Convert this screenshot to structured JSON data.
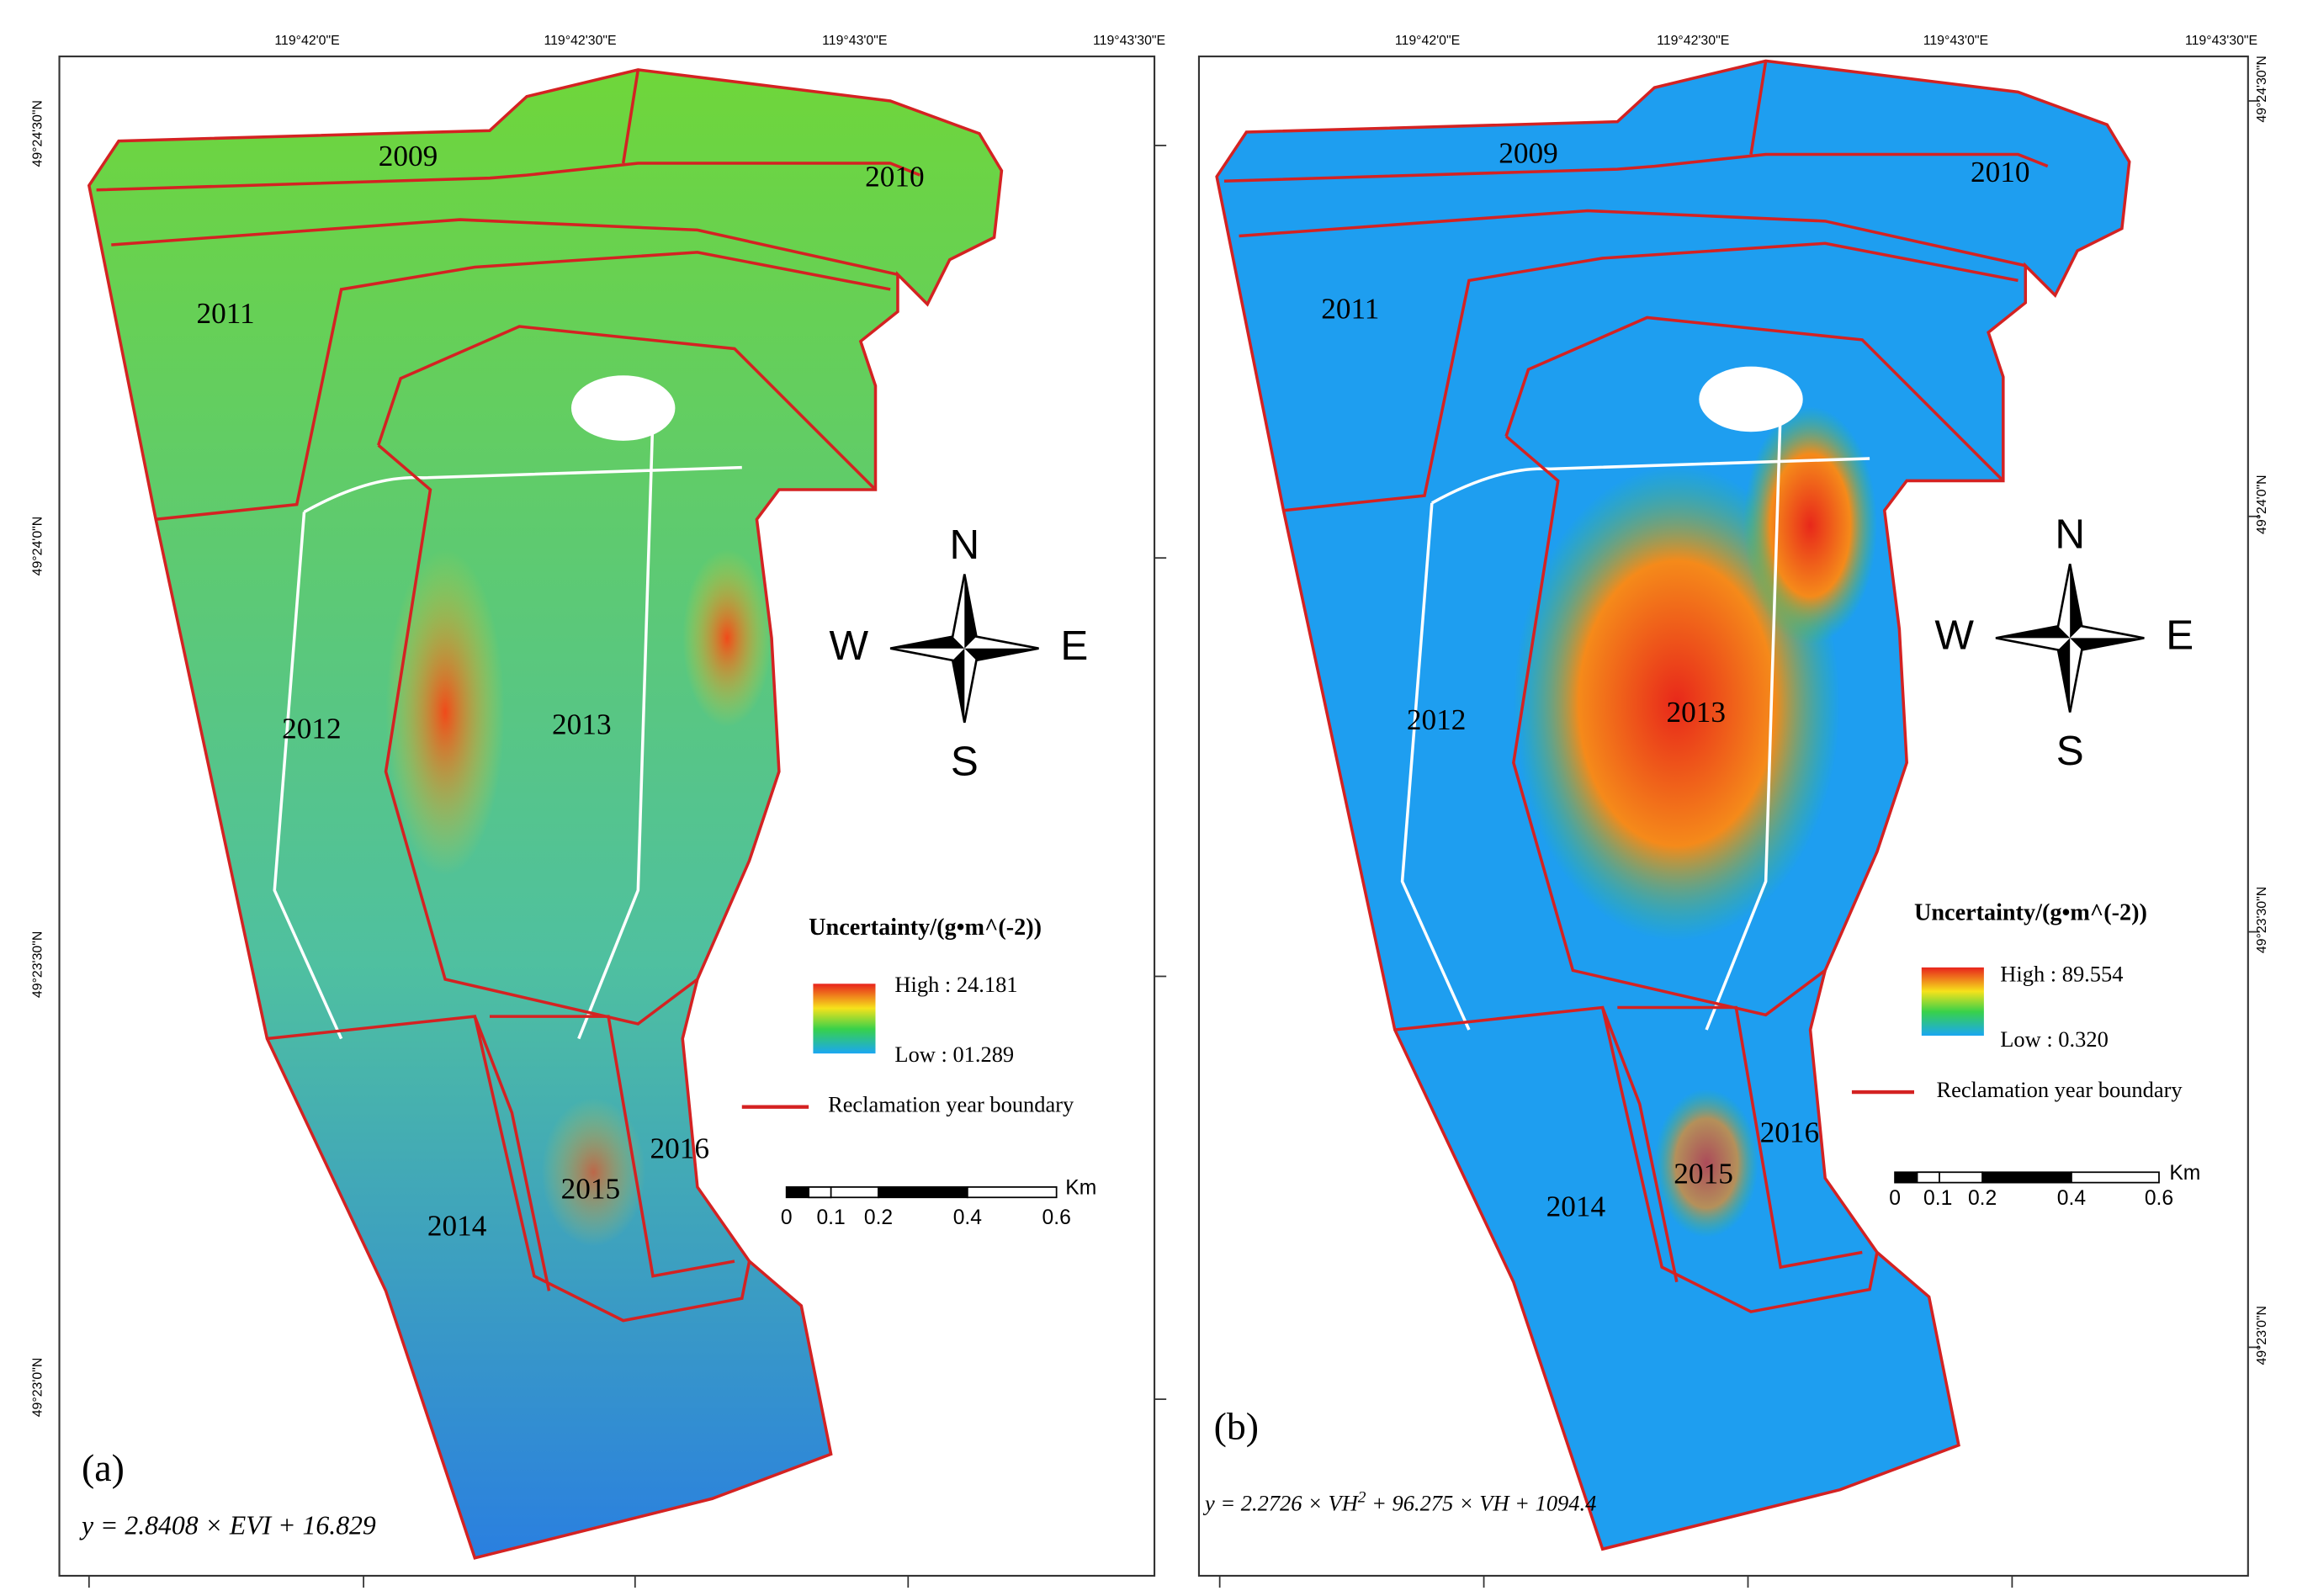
{
  "panels": [
    {
      "label": "(a)",
      "equation": [
        "y = 2.8408 × EVI + 16.829"
      ],
      "lon_labels": [
        "119°42'0\"E",
        "119°42'30\"E",
        "119°43'0\"E",
        "119°43'30\"E"
      ],
      "lat_labels": [
        "49°24'30\"N",
        "49°24'0\"N",
        "49°23'30\"N",
        "49°23'0\"N"
      ],
      "years": [
        "2009",
        "2010",
        "2011",
        "2012",
        "2013",
        "2014",
        "2015",
        "2016"
      ],
      "compass": [
        "N",
        "S",
        "W",
        "E"
      ],
      "legend": {
        "title": "Uncertainty/(g•m^(-2))",
        "high": "High : 24.181",
        "low": "Low : 01.289",
        "boundary": "Reclamation year  boundary"
      },
      "scale": {
        "labels": [
          "0",
          "0.1",
          "0.2",
          "0.4",
          "0.6"
        ],
        "unit": "Km"
      }
    },
    {
      "label": "(b)",
      "equation": [
        "y = 2.2726 × VH",
        "2",
        " + 96.275 × VH + 1094.4"
      ],
      "lon_labels": [
        "119°42'0\"E",
        "119°42'30\"E",
        "119°43'0\"E",
        "119°43'30\"E"
      ],
      "lat_labels": [
        "49°24'30\"N",
        "49°24'0\"N",
        "49°23'30\"N",
        "49°23'0\"N"
      ],
      "years": [
        "2009",
        "2010",
        "2011",
        "2012",
        "2013",
        "2014",
        "2015",
        "2016"
      ],
      "compass": [
        "N",
        "S",
        "W",
        "E"
      ],
      "legend": {
        "title": "Uncertainty/(g•m^(-2))",
        "high": "High : 89.554",
        "low": "Low : 0.320",
        "boundary": "Reclamation year  boundary"
      },
      "scale": {
        "labels": [
          "0",
          "0.1",
          "0.2",
          "0.4",
          "0.6"
        ],
        "unit": "Km"
      }
    }
  ]
}
